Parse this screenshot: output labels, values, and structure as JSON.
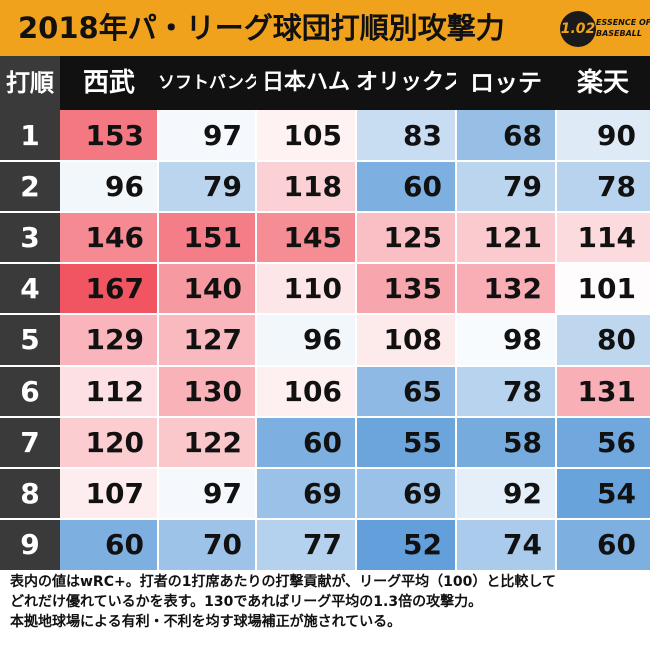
{
  "title": "2018年パ・リーグ球団打順別攻撃力",
  "logo": {
    "badge": "1.02",
    "text": "ESSENCE OF\nBASEBALL"
  },
  "chart_data": {
    "type": "heatmap",
    "title": "2018年パ・リーグ球団打順別攻撃力",
    "row_header_label": "打順",
    "columns": [
      "西武",
      "ソフトバンク",
      "日本ハム",
      "オリックス",
      "ロッテ",
      "楽天"
    ],
    "rows": [
      "1",
      "2",
      "3",
      "4",
      "5",
      "6",
      "7",
      "8",
      "9"
    ],
    "values": [
      [
        153,
        97,
        105,
        83,
        68,
        90
      ],
      [
        96,
        79,
        118,
        60,
        79,
        78
      ],
      [
        146,
        151,
        145,
        125,
        121,
        114
      ],
      [
        167,
        140,
        110,
        135,
        132,
        101
      ],
      [
        129,
        127,
        96,
        108,
        98,
        80
      ],
      [
        112,
        130,
        106,
        65,
        78,
        131
      ],
      [
        120,
        122,
        60,
        55,
        58,
        56
      ],
      [
        107,
        97,
        69,
        69,
        92,
        54
      ],
      [
        60,
        70,
        77,
        52,
        74,
        60
      ]
    ],
    "color_scale": {
      "low": "#5c9bd8",
      "mid": "#ffffff",
      "high": "#f04d5a",
      "mid_value": 100
    }
  },
  "notes": [
    "表内の値はwRC+。打者の1打席あたりの打撃貢献が、リーグ平均（100）と比較して",
    "どれだけ優れているかを表す。130であればリーグ平均の1.3倍の攻撃力。",
    "本拠地球場による有利・不利を均す球場補正が施されている。"
  ]
}
